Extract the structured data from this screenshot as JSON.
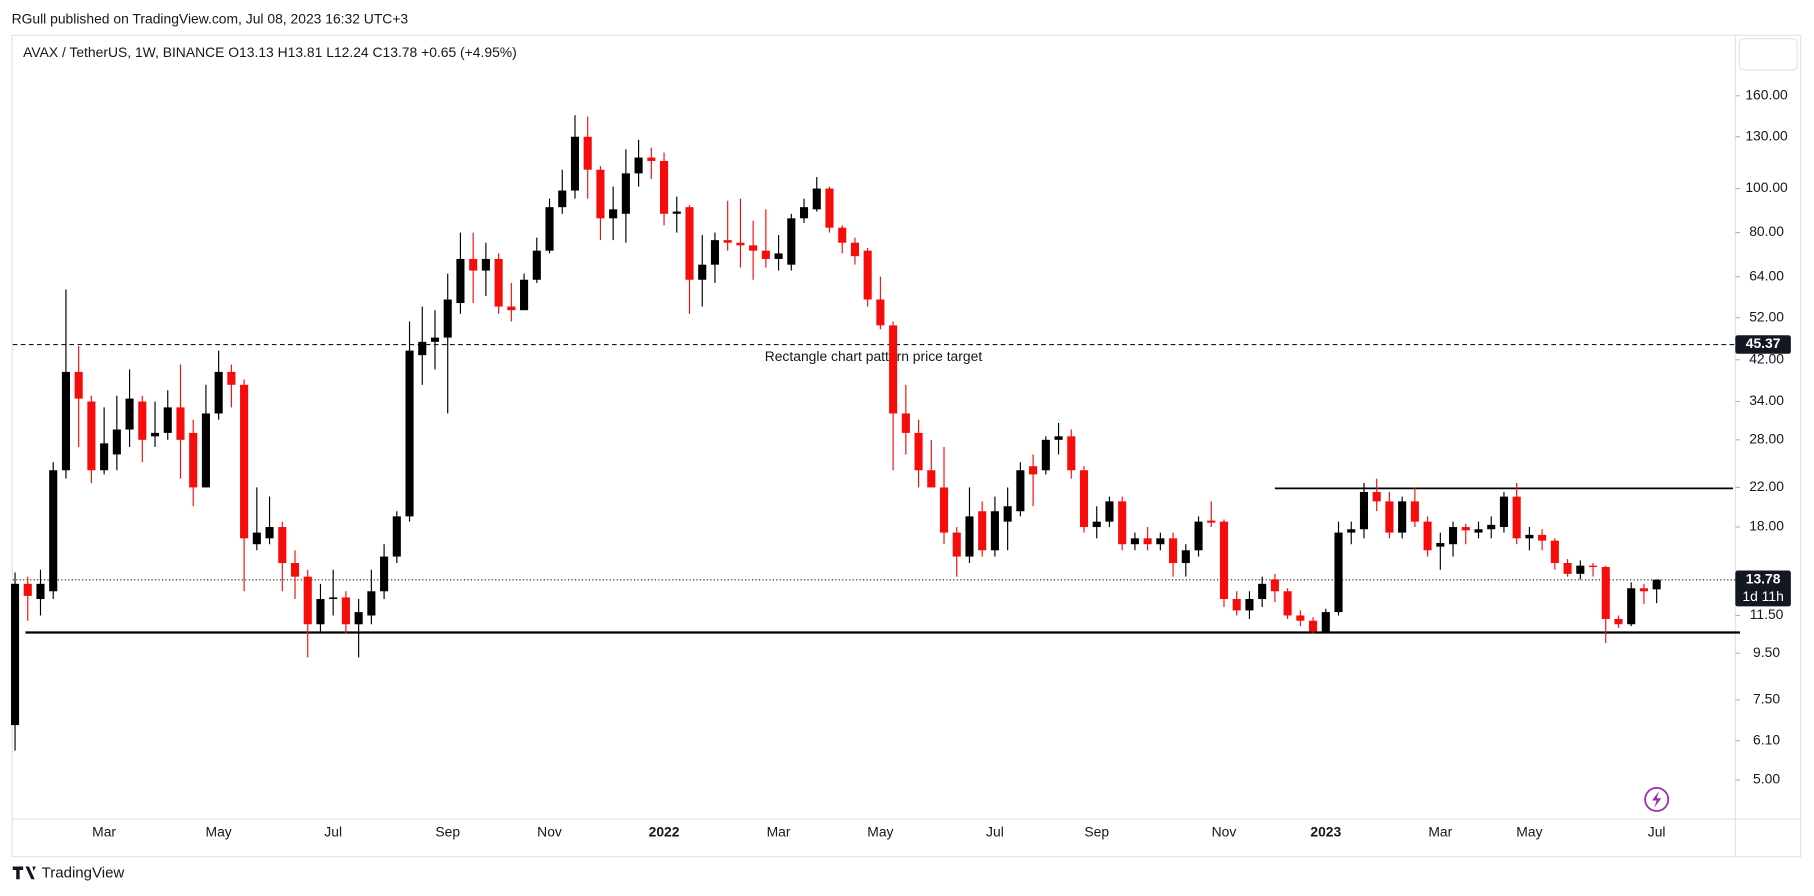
{
  "header": {
    "published": "RGull published on TradingView.com, Jul 08, 2023 16:32 UTC+3",
    "brand": "TradingView"
  },
  "chart_data": {
    "type": "candlestick",
    "legend": "AVAX / TetherUS, 1W, BINANCE  O13.13  H13.81  L12.24  C13.78  +0.65 (+4.95%)",
    "categories": [
      null,
      null,
      null,
      null,
      null,
      null,
      null,
      "Mar",
      null,
      null,
      null,
      null,
      null,
      null,
      null,
      null,
      "May",
      null,
      null,
      null,
      null,
      null,
      null,
      null,
      null,
      "Jul",
      null,
      null,
      null,
      null,
      null,
      null,
      null,
      null,
      "Sep",
      null,
      null,
      null,
      null,
      null,
      null,
      null,
      "Nov",
      null,
      null,
      null,
      null,
      null,
      null,
      null,
      null,
      "2022",
      null,
      null,
      null,
      null,
      null,
      null,
      null,
      null,
      "Mar",
      null,
      null,
      null,
      null,
      null,
      null,
      null,
      "May",
      null,
      null,
      null,
      null,
      null,
      null,
      null,
      null,
      "Jul",
      null,
      null,
      null,
      null,
      null,
      null,
      null,
      "Sep",
      null,
      null,
      null,
      null,
      null,
      null,
      null,
      null,
      null,
      "Nov",
      null,
      null,
      null,
      null,
      null,
      null,
      null,
      "2023",
      null,
      null,
      null,
      null,
      null,
      null,
      null,
      null,
      "Mar",
      null,
      null,
      null,
      null,
      null,
      null,
      "May",
      null,
      null,
      null,
      null,
      null,
      null,
      null,
      null,
      null,
      "Jul"
    ],
    "open": [
      6.6,
      13.5,
      12.5,
      13,
      24,
      39.5,
      34,
      24,
      26,
      29.5,
      34,
      28.5,
      29,
      33,
      29,
      22,
      32,
      39.5,
      37,
      16.5,
      17,
      18,
      15,
      14,
      11,
      12.5,
      12.6,
      11,
      11.5,
      13,
      15.5,
      19,
      43,
      46,
      47,
      56,
      70,
      66,
      70,
      55,
      54,
      63,
      73,
      91,
      99,
      130,
      110,
      86,
      88,
      108,
      117,
      115,
      88,
      91,
      63,
      68,
      77,
      76,
      75,
      73,
      70,
      68,
      86,
      90,
      100,
      82,
      76,
      73,
      57,
      50,
      32,
      29,
      24,
      22,
      17.5,
      15.5,
      19.5,
      16,
      18.5,
      19.5,
      24.5,
      24,
      28,
      28.5,
      24,
      18,
      18.5,
      20.5,
      16.5,
      17,
      16.5,
      17,
      15,
      16,
      18.6,
      18.5,
      12.5,
      11.8,
      12.5,
      13.8,
      13,
      11.5,
      11.2,
      10.6,
      11.7,
      17.5,
      17.8,
      21.5,
      20.5,
      17.5,
      20.5,
      18.5,
      16.3,
      16.5,
      18,
      17.5,
      17.8,
      18,
      21,
      17,
      17.3,
      16.8,
      15,
      14.2,
      14.8,
      14.7,
      11.3,
      11,
      13.2,
      13.13
    ],
    "high": [
      14.3,
      14,
      14.5,
      25,
      60,
      45,
      35,
      33,
      35,
      40,
      35,
      34,
      36,
      41,
      31,
      37,
      44,
      41,
      38,
      22,
      21,
      18.5,
      16,
      14.5,
      13.5,
      14.5,
      13,
      12.5,
      14.5,
      16.5,
      19.5,
      51,
      55,
      54,
      65,
      80,
      80,
      76,
      72,
      62,
      65,
      78,
      95,
      110,
      145,
      144,
      112,
      101,
      122,
      128,
      123,
      120,
      96,
      92,
      79,
      80,
      94,
      95,
      85,
      90,
      79,
      88,
      95,
      106,
      101,
      83,
      78,
      74,
      64,
      51,
      37,
      31,
      28,
      27,
      18,
      22,
      20.5,
      21,
      22,
      25,
      26,
      28.5,
      30.5,
      29.5,
      24.5,
      20,
      21,
      21,
      17.5,
      18,
      17.5,
      17.5,
      16.5,
      19,
      20.5,
      18.7,
      13,
      13,
      14,
      14.2,
      13.2,
      11.8,
      11.4,
      11.9,
      18.5,
      18.5,
      22.5,
      23,
      21.5,
      21,
      22,
      19,
      17.5,
      18.5,
      18.3,
      18.5,
      19,
      21.5,
      22.5,
      18,
      17.8,
      17,
      15.3,
      15.2,
      15,
      14.8,
      11.5,
      13.6,
      13.5,
      13.81
    ],
    "low": [
      5.8,
      11.2,
      11.5,
      12.5,
      23,
      27,
      22.5,
      23.5,
      24,
      27,
      25,
      27,
      28,
      23,
      20,
      22,
      31,
      33,
      13,
      16,
      16.5,
      13,
      12.5,
      9.3,
      10.5,
      11.5,
      10.5,
      9.3,
      11,
      12.5,
      15,
      18.5,
      37,
      40,
      32,
      53,
      56,
      58,
      53,
      51,
      54,
      62,
      72,
      88,
      95,
      95,
      77,
      77,
      76,
      101,
      105,
      83,
      80,
      53,
      55,
      62,
      73,
      67,
      63,
      67,
      66,
      66,
      84,
      89,
      80,
      72,
      68,
      55,
      49,
      24,
      26,
      22,
      22,
      16.5,
      14,
      15,
      15.5,
      15.5,
      16,
      19,
      20,
      23.5,
      26,
      23,
      17.5,
      17,
      18,
      16,
      16,
      16,
      16,
      14,
      14,
      15.5,
      18,
      12,
      11.5,
      11.3,
      12,
      12.3,
      11.3,
      10.9,
      10.5,
      10.5,
      11.5,
      16.5,
      17,
      19.5,
      17,
      17,
      18,
      15.5,
      14.5,
      15.5,
      16.5,
      17,
      17,
      17.5,
      16.5,
      16,
      16,
      14.5,
      14,
      13.8,
      14,
      10,
      10.8,
      10.9,
      12.2,
      12.24
    ],
    "close": [
      13.5,
      12.7,
      13.5,
      24,
      39.5,
      34.5,
      24,
      27.5,
      29.5,
      34.5,
      28,
      29,
      33,
      28,
      22,
      32,
      39.5,
      37,
      17,
      17.5,
      18,
      15,
      14,
      11,
      12.5,
      12.6,
      11,
      11.7,
      13,
      15.5,
      19,
      44,
      46,
      47,
      57,
      70,
      66,
      70,
      55,
      54,
      63,
      73,
      91,
      99,
      130,
      110,
      86,
      90,
      108,
      117,
      115,
      88,
      89,
      63,
      68,
      77,
      76,
      75,
      73,
      70,
      72,
      86,
      91,
      100,
      82,
      76,
      71,
      57,
      50,
      32,
      29,
      24,
      22,
      17.5,
      15.5,
      19,
      16,
      19.5,
      20,
      24,
      23.5,
      28,
      28.5,
      24,
      18,
      18.5,
      20.5,
      16.5,
      17,
      16.5,
      17,
      15,
      16,
      18.5,
      18.4,
      12.5,
      11.8,
      12.5,
      13.5,
      13,
      11.5,
      11.2,
      10.6,
      11.7,
      17.5,
      17.8,
      21.5,
      20.5,
      17.5,
      20.5,
      18.5,
      16,
      16.6,
      18,
      17.7,
      17.8,
      18.2,
      21,
      17,
      17.3,
      16.8,
      15,
      14.2,
      14.8,
      14.7,
      11.3,
      11,
      13.2,
      13,
      13.78
    ],
    "up_color": "#000000",
    "down_color": "#f70c0c",
    "log_scale": true,
    "grid": false,
    "ylim": [
      4.1,
      218
    ],
    "yticks": [
      {
        "value": 160,
        "label": "160.00"
      },
      {
        "value": 130,
        "label": "130.00"
      },
      {
        "value": 100,
        "label": "100.00"
      },
      {
        "value": 80,
        "label": "80.00"
      },
      {
        "value": 64,
        "label": "64.00"
      },
      {
        "value": 52,
        "label": "52.00"
      },
      {
        "value": 42,
        "label": "42.00"
      },
      {
        "value": 34,
        "label": "34.00"
      },
      {
        "value": 28,
        "label": "28.00"
      },
      {
        "value": 22,
        "label": "22.00"
      },
      {
        "value": 18,
        "label": "18.00"
      },
      {
        "value": 11.5,
        "label": "11.50"
      },
      {
        "value": 9.5,
        "label": "9.50"
      },
      {
        "value": 7.5,
        "label": "7.50"
      },
      {
        "value": 6.1,
        "label": "6.10"
      },
      {
        "value": 5,
        "label": "5.00"
      }
    ],
    "price_target": {
      "value": 45.37,
      "label": "45.37"
    },
    "annotation": "Rectangle chart pattern price target",
    "support": 10.55,
    "resistance": 21.9,
    "last_price": {
      "value": 13.78,
      "label": "13.78"
    },
    "countdown": "1d 11h"
  }
}
